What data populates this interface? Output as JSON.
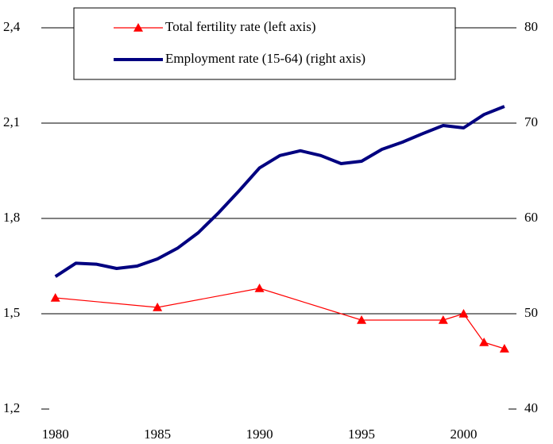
{
  "chart_data": {
    "type": "line",
    "x": [
      1980,
      1981,
      1982,
      1983,
      1984,
      1985,
      1986,
      1987,
      1988,
      1989,
      1990,
      1991,
      1992,
      1993,
      1994,
      1995,
      1996,
      1997,
      1998,
      1999,
      2000,
      2001,
      2002
    ],
    "series": [
      {
        "name": "Total fertility rate (left axis)",
        "color": "#ff0000",
        "marker": "triangle",
        "values": [
          1.55,
          null,
          null,
          null,
          null,
          1.52,
          null,
          null,
          null,
          null,
          1.58,
          null,
          null,
          null,
          null,
          1.48,
          null,
          null,
          null,
          1.48,
          1.5,
          1.41,
          1.39
        ]
      },
      {
        "name": "Employment rate (15-64) (right axis)",
        "color": "#000080",
        "axis": "y2",
        "values": [
          53.9,
          55.3,
          55.2,
          54.75,
          55.0,
          55.75,
          56.9,
          58.5,
          60.6,
          62.9,
          65.3,
          66.6,
          67.1,
          66.6,
          65.75,
          66.0,
          67.25,
          68.0,
          68.9,
          69.75,
          69.5,
          70.9,
          71.75
        ]
      }
    ],
    "xlim": [
      1979.7,
      2002.2
    ],
    "xticks": [
      1980,
      1985,
      1990,
      1995,
      2000
    ],
    "ylim": [
      1.2,
      2.4
    ],
    "yticks": [
      {
        "value": 1.2,
        "label": "1,2"
      },
      {
        "value": 1.5,
        "label": "1,5"
      },
      {
        "value": 1.8,
        "label": "1,8"
      },
      {
        "value": 2.1,
        "label": "2,1"
      },
      {
        "value": 2.4,
        "label": "2,4"
      }
    ],
    "y2lim": [
      40,
      80
    ],
    "y2ticks": [
      40,
      50,
      60,
      70,
      80
    ],
    "grid": true
  }
}
